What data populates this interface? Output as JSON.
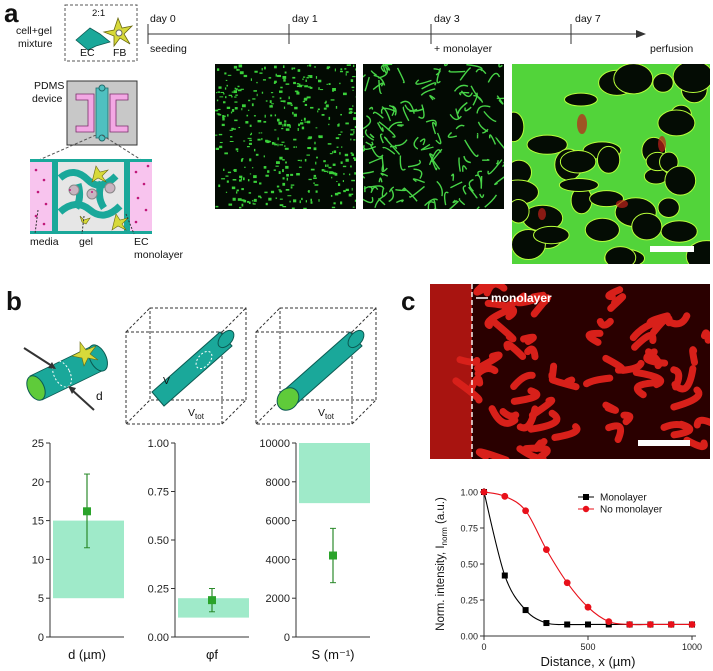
{
  "panel_a": {
    "letter": "a",
    "mixture_label_1": "cell+gel",
    "mixture_label_2": "mixture",
    "ratio": "2:1",
    "ec_label": "EC",
    "fb_label": "FB",
    "pdms_label_1": "PDMS",
    "pdms_label_2": "device",
    "media_label": "media",
    "gel_label": "gel",
    "ec_mono_label_1": "EC",
    "ec_mono_label_2": "monolayer",
    "timeline": [
      {
        "top": "day 0",
        "bottom": "seeding"
      },
      {
        "top": "day 1",
        "bottom": ""
      },
      {
        "top": "day 3",
        "bottom": "+ monolayer"
      },
      {
        "top": "day 7",
        "bottom": ""
      },
      {
        "top": "",
        "bottom": "perfusion"
      }
    ]
  },
  "panel_b": {
    "letter": "b",
    "d_label": "d",
    "v_label": "V",
    "vtot_label": "V",
    "vtot_sub": "tot",
    "s_label": "S",
    "charts": [
      {
        "xlabel": "d (µm)",
        "yticks": [
          "0",
          "5",
          "10",
          "15",
          "20",
          "25"
        ],
        "ylim": [
          0,
          25
        ],
        "band": [
          5,
          15
        ],
        "value": 16.2,
        "err": [
          11.5,
          21
        ]
      },
      {
        "xlabel": "φf",
        "yticks": [
          "0.00",
          "0.25",
          "0.50",
          "0.75",
          "1.00"
        ],
        "ylim": [
          0,
          1
        ],
        "band": [
          0.1,
          0.2
        ],
        "value": 0.19,
        "err": [
          0.13,
          0.25
        ]
      },
      {
        "xlabel": "S (m⁻¹)",
        "yticks": [
          "0",
          "2000",
          "4000",
          "6000",
          "8000",
          "10000"
        ],
        "ylim": [
          0,
          10000
        ],
        "band": [
          6900,
          10000
        ],
        "value": 4200,
        "err": [
          2800,
          5600
        ]
      }
    ]
  },
  "panel_c": {
    "letter": "c",
    "monolayer_label": "monolayer"
  },
  "chart_data": {
    "type": "line",
    "xlabel": "Distance, x (µm)",
    "ylabel": "Norm. intensity, I",
    "ylabel_sub": "norm",
    "ylabel_unit": "(a.u.)",
    "xlim": [
      0,
      1000
    ],
    "ylim": [
      0,
      1
    ],
    "xticks": [
      "0",
      "500",
      "1000"
    ],
    "yticks": [
      "0.00",
      "0.25",
      "0.50",
      "0.75",
      "1.00"
    ],
    "legend": "top-right",
    "series": [
      {
        "name": "Monolayer",
        "color": "#000000",
        "marker": "square",
        "x": [
          0,
          100,
          200,
          300,
          400,
          500,
          600,
          700,
          800,
          900,
          1000
        ],
        "y": [
          1.0,
          0.42,
          0.18,
          0.09,
          0.08,
          0.08,
          0.08,
          0.08,
          0.08,
          0.08,
          0.08
        ]
      },
      {
        "name": "No monolayer",
        "color": "#e8101a",
        "marker": "circle",
        "x": [
          0,
          100,
          200,
          300,
          400,
          500,
          600,
          700,
          800,
          900,
          1000
        ],
        "y": [
          1.0,
          0.97,
          0.87,
          0.6,
          0.37,
          0.2,
          0.1,
          0.08,
          0.08,
          0.08,
          0.08
        ]
      }
    ]
  }
}
